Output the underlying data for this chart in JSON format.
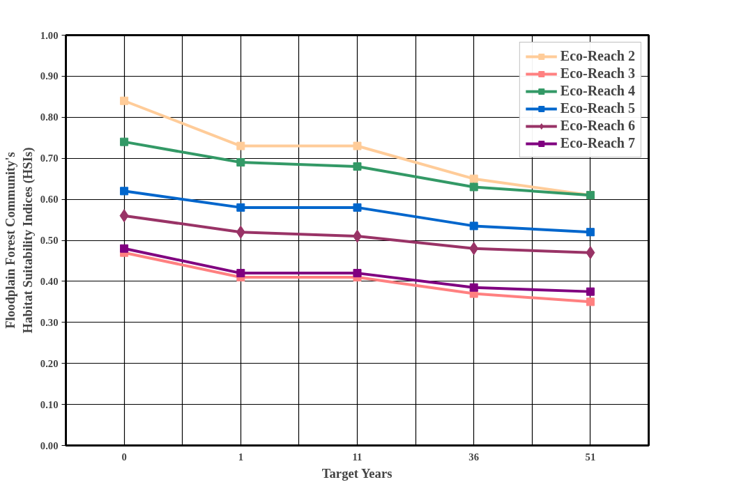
{
  "chart_data": {
    "type": "line",
    "xlabel": "Target Years",
    "ylabel": "Floodplain Forest Community's\nHabitat Suitability Indices (HSIs)",
    "categories": [
      "0",
      "1",
      "11",
      "36",
      "51"
    ],
    "series": [
      {
        "name": "Eco-Reach 2",
        "color": "#ffcc99",
        "marker": "square",
        "values": [
          0.84,
          0.73,
          0.73,
          0.65,
          0.61
        ]
      },
      {
        "name": "Eco-Reach 3",
        "color": "#ff8080",
        "marker": "square",
        "values": [
          0.47,
          0.41,
          0.41,
          0.37,
          0.35
        ]
      },
      {
        "name": "Eco-Reach 4",
        "color": "#339966",
        "marker": "square",
        "values": [
          0.74,
          0.69,
          0.68,
          0.63,
          0.61
        ]
      },
      {
        "name": "Eco-Reach 5",
        "color": "#0066cc",
        "marker": "square",
        "values": [
          0.62,
          0.58,
          0.58,
          0.535,
          0.52
        ]
      },
      {
        "name": "Eco-Reach 6",
        "color": "#993366",
        "marker": "diamond",
        "values": [
          0.56,
          0.52,
          0.51,
          0.48,
          0.47
        ]
      },
      {
        "name": "Eco-Reach 7",
        "color": "#800080",
        "marker": "square",
        "values": [
          0.48,
          0.42,
          0.42,
          0.385,
          0.375
        ]
      }
    ],
    "ylim": [
      0,
      1
    ],
    "yticks": [
      {
        "value": 0,
        "label": "0.00"
      },
      {
        "value": 0.1,
        "label": "0.10"
      },
      {
        "value": 0.2,
        "label": "0.20"
      },
      {
        "value": 0.3,
        "label": "0.30"
      },
      {
        "value": 0.4,
        "label": "0.40"
      },
      {
        "value": 0.5,
        "label": "0.50"
      },
      {
        "value": 0.6,
        "label": "0.60"
      },
      {
        "value": 0.7,
        "label": "0.70"
      },
      {
        "value": 0.8,
        "label": "0.80"
      },
      {
        "value": 0.9,
        "label": "0.90"
      },
      {
        "value": 1,
        "label": "1.00"
      }
    ],
    "grid": true,
    "legend": "top right",
    "line_style": "solid"
  }
}
